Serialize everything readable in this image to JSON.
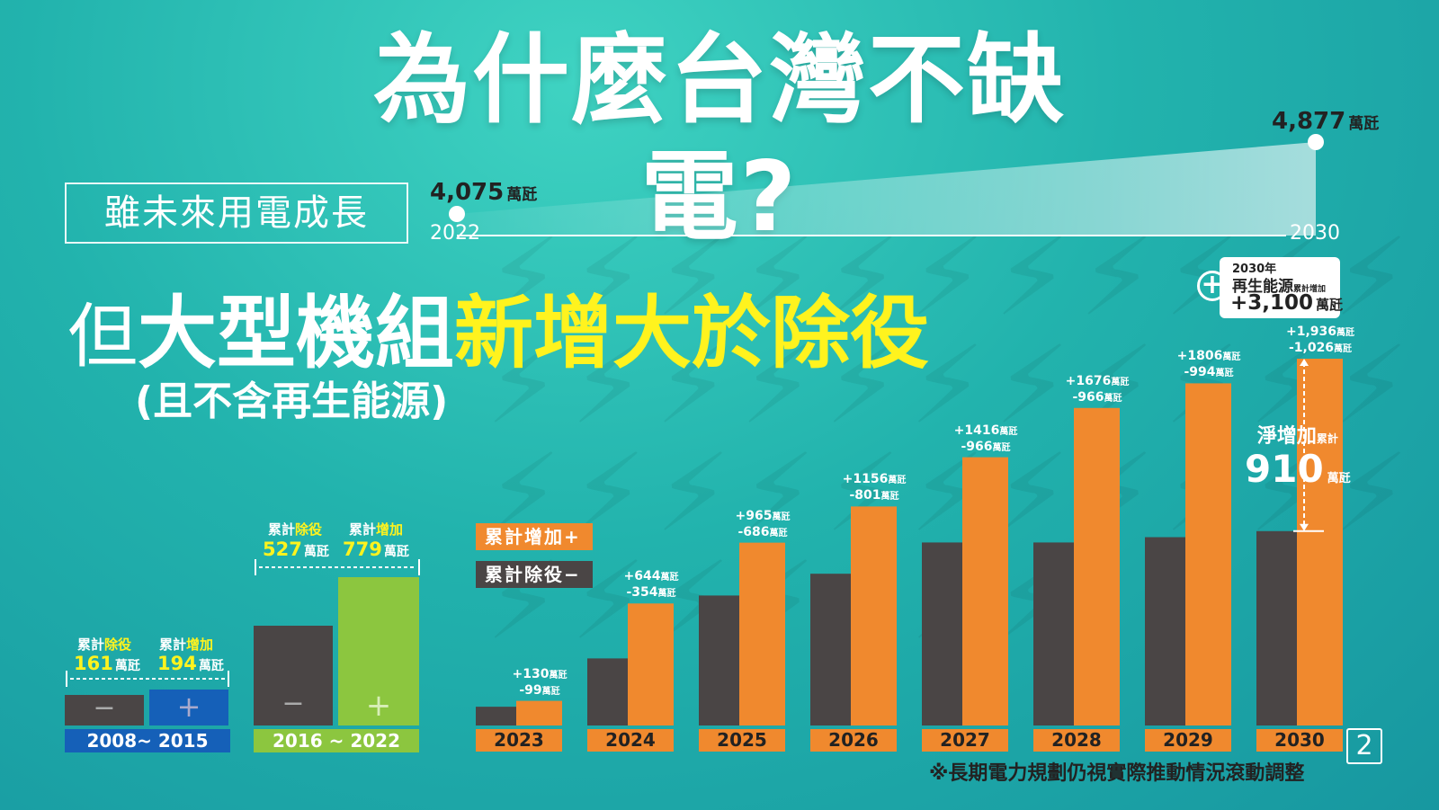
{
  "title": "為什麼台灣不缺電?",
  "subtitle_box": "雖未來用電成長",
  "growth": {
    "start_value": "4,075",
    "start_unit": "萬瓩",
    "start_year": "2022",
    "end_value": "4,877",
    "end_unit": "萬瓩",
    "end_year": "2030"
  },
  "headline": {
    "prefix": "但",
    "white": "大型機組",
    "yellow": "新增大於除役",
    "paren": "(且不含再生能源)"
  },
  "periods": [
    {
      "label": "2008~ 2015",
      "retire_caption": "除役",
      "add_caption": "增加",
      "cap_prefix": "累計",
      "retire_value": "161",
      "add_value": "194",
      "unit": "萬瓩",
      "minus_symbol": "−",
      "plus_symbol": "+",
      "retire_color": "#4a4545",
      "add_color": "#1560b8",
      "label_color": "#1560b8"
    },
    {
      "label": "2016 ~ 2022",
      "retire_caption": "除役",
      "add_caption": "增加",
      "cap_prefix": "累計",
      "retire_value": "527",
      "add_value": "779",
      "unit": "萬瓩",
      "minus_symbol": "−",
      "plus_symbol": "+",
      "retire_color": "#4a4545",
      "add_color": "#8cc63f",
      "label_color": "#8cc63f"
    }
  ],
  "legend": {
    "add": "累計增加+",
    "retire": "累計除役−",
    "add_color": "#f0892e",
    "retire_color": "#4a4545"
  },
  "renewable": {
    "year": "2030年",
    "label": "再生能源",
    "small": "累計增加",
    "value": "+3,100",
    "unit": "萬瓩",
    "plus_symbol": "+"
  },
  "net_increase": {
    "label": "淨增加",
    "small": "累計",
    "value": "910",
    "unit": "萬瓩"
  },
  "footnote": "※長期電力規劃仍視實際推動情況滾動調整",
  "page_number": "2",
  "chart_data": {
    "type": "bar",
    "title": "",
    "categories": [
      "2023",
      "2024",
      "2025",
      "2026",
      "2027",
      "2028",
      "2029",
      "2030"
    ],
    "series": [
      {
        "name": "累計除役",
        "values": [
          99,
          354,
          686,
          801,
          966,
          966,
          994,
          1026
        ],
        "color": "#4a4545"
      },
      {
        "name": "累計增加",
        "values": [
          130,
          644,
          965,
          1156,
          1416,
          1676,
          1806,
          1936
        ],
        "color": "#f0892e"
      }
    ],
    "add_labels": [
      "+130",
      "+644",
      "+965",
      "+1156",
      "+1416",
      "+1676",
      "+1806",
      "+1,936"
    ],
    "retire_labels": [
      "-99",
      "-354",
      "-686",
      "-801",
      "-966",
      "-966",
      "-994",
      "-1,026"
    ],
    "unit": "萬瓩",
    "ylim": [
      0,
      2000
    ],
    "grid": false,
    "legend": "left"
  }
}
